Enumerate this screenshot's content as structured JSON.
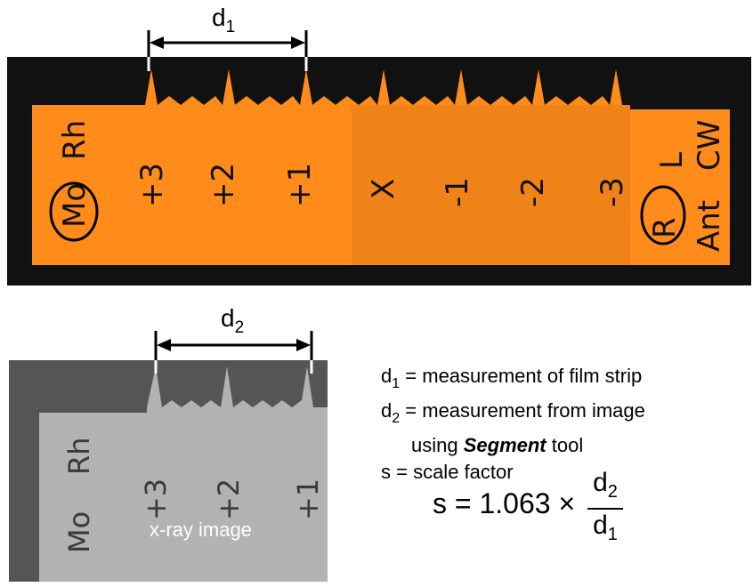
{
  "film_strip": {
    "left_labels": [
      "Mo",
      "Rh"
    ],
    "step_labels": [
      "+3",
      "+2",
      "+1",
      "X",
      "-1",
      "-2",
      "-3"
    ],
    "right_labels": [
      "L",
      "CW",
      "R",
      "Ant"
    ],
    "strip_color": "#ff8c1a",
    "background_color": "#111111"
  },
  "xray_image": {
    "caption": "x-ray image",
    "left_labels": [
      "Mo",
      "Rh"
    ],
    "step_labels": [
      "+3",
      "+2",
      "+1"
    ]
  },
  "dimensions": {
    "d1": {
      "base": "d",
      "sub": "1"
    },
    "d2": {
      "base": "d",
      "sub": "2"
    }
  },
  "legend": {
    "d1_def": "= measurement of film strip",
    "d2_def": "= measurement from image",
    "d2_def_cont_pre": "using ",
    "d2_def_tool": "Segment",
    "d2_def_cont_post": " tool",
    "s_def": "s = scale factor"
  },
  "formula": {
    "lhs": "s = 1.063 ×",
    "numerator": {
      "base": "d",
      "sub": "2"
    },
    "denominator": {
      "base": "d",
      "sub": "1"
    }
  }
}
